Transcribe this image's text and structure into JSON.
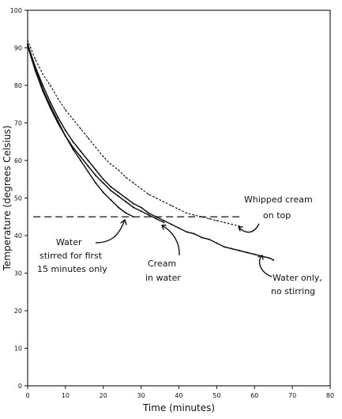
{
  "chart_data": {
    "type": "line",
    "title": "",
    "xlabel": "Time (minutes)",
    "ylabel": "Temperature (degrees Celsius)",
    "xlim": [
      0,
      80
    ],
    "ylim": [
      0,
      100
    ],
    "x_ticks": [
      "0",
      "10",
      "20",
      "30",
      "40",
      "50",
      "60",
      "70",
      "80"
    ],
    "y_ticks": [
      "0",
      "10",
      "20",
      "30",
      "40",
      "50",
      "60",
      "70",
      "80",
      "90",
      "100"
    ],
    "grid": false,
    "legend": "none",
    "series": [
      {
        "style": "dotted",
        "x": [
          0,
          2,
          4,
          6,
          8,
          10,
          12,
          14,
          16,
          18,
          20,
          22,
          24,
          26,
          28,
          30,
          32,
          34,
          36,
          38,
          40,
          42,
          44,
          46,
          48,
          50,
          52,
          54,
          56
        ],
        "y": [
          92,
          87,
          83,
          80,
          76.5,
          73.5,
          71,
          68.5,
          66,
          63.5,
          61,
          59,
          57.5,
          55.5,
          54,
          52.5,
          51,
          50,
          49,
          48,
          47,
          46,
          45.5,
          45,
          44.5,
          44,
          43.5,
          43,
          42.5
        ]
      },
      {
        "style": "solid-dotted",
        "x": [
          0,
          2,
          4,
          6,
          8,
          10,
          12,
          14,
          16,
          18,
          20,
          22,
          24,
          26,
          28,
          30,
          32,
          34,
          36,
          38,
          40,
          42,
          44,
          46,
          48,
          50,
          52,
          54,
          56,
          58,
          60,
          62,
          64,
          65
        ],
        "y": [
          91,
          85,
          80,
          75.5,
          71.5,
          68,
          65,
          62.5,
          60,
          57.5,
          55,
          53,
          51.5,
          50,
          48.5,
          47.5,
          46,
          45,
          44,
          43,
          42,
          41,
          40.5,
          39.5,
          39,
          38,
          37,
          36.5,
          36,
          35.5,
          35,
          34.5,
          34,
          33.5
        ]
      },
      {
        "style": "solid",
        "x": [
          0,
          2,
          4,
          6,
          8,
          10,
          12,
          14,
          16,
          18,
          20,
          22,
          24,
          26,
          28
        ],
        "y": [
          91,
          84.5,
          79,
          74.5,
          70.5,
          66.5,
          63,
          60,
          57,
          54,
          51.5,
          49.5,
          47.5,
          46,
          45
        ]
      },
      {
        "style": "solid",
        "x": [
          0,
          2,
          4,
          6,
          8,
          10,
          12,
          14,
          16,
          18,
          20,
          22,
          24,
          26,
          28,
          30,
          32,
          34,
          36
        ],
        "y": [
          90.5,
          84,
          78.5,
          74,
          70,
          66.5,
          63.5,
          61,
          58.5,
          56,
          54,
          52,
          50.5,
          49,
          47.5,
          46.5,
          45.5,
          44.5,
          43.5
        ]
      }
    ],
    "reference_line": {
      "y": 45,
      "x": [
        1.5,
        56
      ],
      "style": "dashed"
    },
    "annotations": [
      {
        "lines": [
          "Whipped cream",
          "on top"
        ]
      },
      {
        "lines": [
          "Water",
          "stirred for first",
          "15 minutes only"
        ]
      },
      {
        "lines": [
          "Cream",
          "in water"
        ]
      },
      {
        "lines": [
          "Water only,",
          "no stirring"
        ]
      }
    ]
  }
}
